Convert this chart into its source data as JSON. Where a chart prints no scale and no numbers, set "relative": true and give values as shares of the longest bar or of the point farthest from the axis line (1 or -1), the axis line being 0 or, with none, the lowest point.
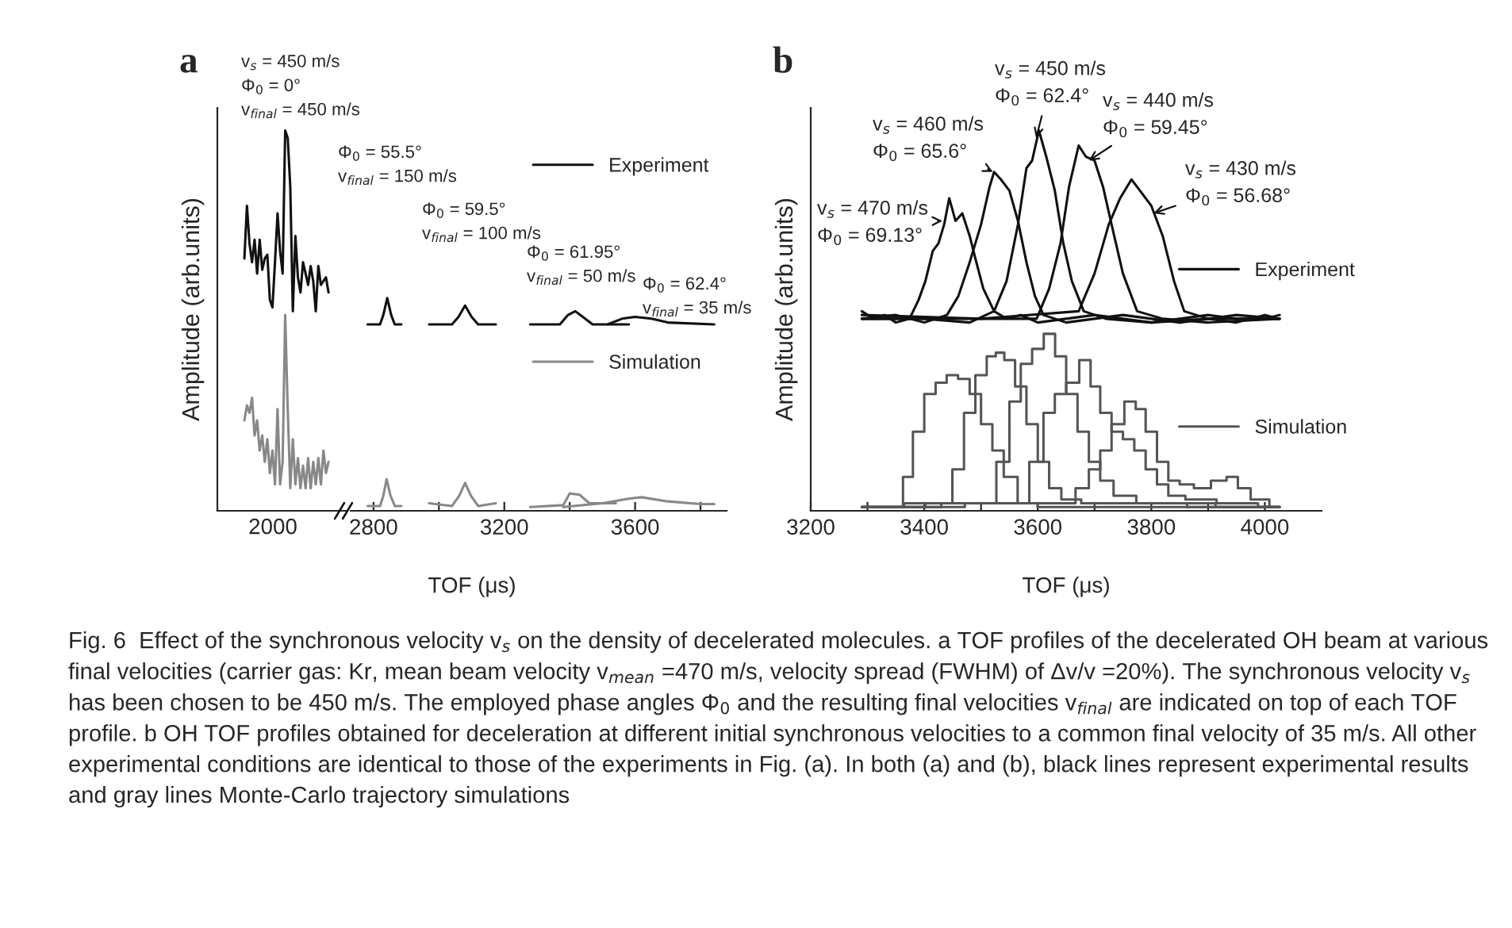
{
  "chart_data": [
    {
      "type": "line",
      "title": "a",
      "ylabel": "Amplitude (arb.units)",
      "relative": true,
      "tick_labels": false,
      "categories": [
        null,
        null,
        null,
        null,
        null,
        null,
        null,
        null,
        null,
        null,
        null,
        null,
        null,
        null,
        null,
        null,
        null,
        null,
        null,
        null,
        null,
        null,
        null,
        null,
        null,
        null,
        null,
        null,
        null,
        null,
        null,
        null,
        null,
        null
      ],
      "annotations": [
        "v$_{s}$ = 450 m/s\nΦ$_{0}$ = 0°\nv$_{final}$ = 450 m/s",
        "2000"
      ],
      "series": [
        {
          "color": "#111111",
          "values": [
            0.66,
            0.8,
            0.7,
            0.65,
            0.71,
            0.62,
            0.71,
            0.63,
            0.66,
            0.67,
            0.55,
            0.53,
            0.65,
            0.78,
            0.68,
            0.62,
            1.0,
            0.98,
            0.85,
            0.52,
            0.72,
            0.61,
            0.57,
            0.65,
            0.62,
            0.59,
            0.64,
            0.6,
            0.52,
            0.64,
            0.59,
            0.6,
            0.61,
            0.57
          ]
        },
        {
          "color": "#888888",
          "values": [
            0.23,
            0.27,
            0.25,
            0.29,
            0.19,
            0.23,
            0.15,
            0.19,
            0.12,
            0.18,
            0.09,
            0.15,
            0.06,
            0.26,
            0.06,
            0.12,
            0.51,
            0.26,
            0.05,
            0.18,
            0.06,
            0.13,
            0.05,
            0.11,
            0.05,
            0.13,
            0.05,
            0.12,
            0.06,
            0.13,
            0.06,
            0.15,
            0.09,
            0.12
          ]
        }
      ]
    },
    {
      "type": "line",
      "xlabel": "TOF (μs)",
      "relative": true,
      "tick_labels": "x",
      "legend": "right",
      "xlim": [
        2730,
        3880
      ],
      "xticks": [
        2800,
        {
          "value": 3000,
          "label": null
        },
        3200,
        {
          "value": 3400,
          "label": null
        },
        3600,
        {
          "value": 3800,
          "label": null
        }
      ],
      "annotations": [
        "Φ$_{0}$ = 55.5°\nv$_{final}$ = 150 m/s",
        "Φ$_{0}$ = 59.5°\nv$_{final}$ = 100 m/s",
        "Φ$_{0}$ = 61.95°\nv$_{final}$ = 50 m/s",
        "Φ$_{0}$ = 62.4°\nv$_{final}$ = 35 m/s"
      ],
      "series": [
        {
          "name": "Experiment",
          "color": "#111111",
          "x": [
            2782,
            2820,
            2830,
            2842,
            2854,
            2865,
            2885
          ],
          "values": [
            0.874,
            0.874,
            0.919,
            1.0,
            0.919,
            0.874,
            0.874
          ]
        },
        {
          "color": "#111111",
          "x": [
            2970,
            3040,
            3060,
            3080,
            3100,
            3120,
            3174
          ],
          "values": [
            0.874,
            0.874,
            0.91,
            0.964,
            0.91,
            0.874,
            0.874
          ]
        },
        {
          "color": "#111111",
          "x": [
            3279,
            3370,
            3395,
            3417,
            3440,
            3470,
            3581
          ],
          "values": [
            0.874,
            0.874,
            0.919,
            0.937,
            0.91,
            0.874,
            0.874
          ]
        },
        {
          "color": "#111111",
          "x": [
            3516,
            3560,
            3600,
            3650,
            3700,
            3842
          ],
          "values": [
            0.874,
            0.901,
            0.91,
            0.901,
            0.883,
            0.874
          ]
        },
        {
          "name": "Simulation",
          "color": "#888888",
          "x": [
            2782,
            2820,
            2830,
            2840,
            2852,
            2865,
            2885
          ],
          "values": [
            0.005,
            0.005,
            0.054,
            0.133,
            0.054,
            0.005,
            0.005
          ]
        },
        {
          "color": "#888888",
          "x": [
            2970,
            3040,
            3062,
            3080,
            3098,
            3120,
            3174
          ],
          "values": [
            0.018,
            0.005,
            0.054,
            0.115,
            0.054,
            0.005,
            0.018
          ]
        },
        {
          "color": "#888888",
          "x": [
            3279,
            3380,
            3400,
            3430,
            3460,
            3541
          ],
          "values": [
            0.0,
            0.009,
            0.065,
            0.059,
            0.018,
            0.018
          ]
        },
        {
          "color": "#888888",
          "x": [
            3380,
            3500,
            3580,
            3620,
            3700,
            3800,
            3842
          ],
          "values": [
            0.0,
            0.018,
            0.04,
            0.047,
            0.027,
            0.014,
            0.014
          ]
        }
      ]
    },
    {
      "type": "line",
      "title": "b",
      "ylabel": "Amplitude (arb.units)",
      "xlabel": "TOF (μs)",
      "relative": true,
      "tick_labels": "x",
      "legend": "right",
      "xlim": [
        3200,
        4100
      ],
      "xticks": [
        3200,
        {
          "value": 3300,
          "label": null
        },
        3400,
        {
          "value": 3500,
          "label": null
        },
        3600,
        {
          "value": 3700,
          "label": null
        },
        3800,
        {
          "value": 3900,
          "label": null
        },
        4000
      ],
      "annotations": [
        {
          "text": "v$_{s}$ = 470 m/s\nΦ$_{0}$ = 69.13°",
          "x": 3432,
          "y": 0.76
        },
        {
          "text": "v$_{s}$ = 460 m/s\nΦ$_{0}$ = 65.6°",
          "x": 3521,
          "y": 0.89
        },
        {
          "text": "v$_{s}$ = 450 m/s\nΦ$_{0}$ = 62.4°",
          "x": 3597,
          "y": 0.98
        },
        {
          "text": "v$_{s}$ = 440 m/s\nΦ$_{0}$ = 59.45°",
          "x": 3690,
          "y": 0.92
        },
        {
          "text": "v$_{s}$ = 430 m/s\nΦ$_{0}$ = 56.68°",
          "x": 3804,
          "y": 0.78
        },
        "Fig. 6  Effect of the synchronous velocity v$_{s}$ on the density of decelerated molecules. a TOF profiles of the decelerated OH beam at various final velocities (carrier gas: Kr, mean beam velocity v$_{mean}$ =470 m/s, velocity spread (FWHM) of Δv/v =20%). The synchronous velocity v$_{s}$ has been chosen to be 450 m/s. The employed phase angles Φ$_{0}$ and the resulting final velocities v$_{final}$ are indicated on top of each TOF profile. b OH TOF profiles obtained for deceleration at different initial synchronous velocities to a common final velocity of 35 m/s. All other experimental conditions are identical to those of the experiments in Fig. (a). In both (a) and (b), black lines represent experimental results and gray lines Monte-Carlo trajectory simulations"
      ],
      "series": [
        {
          "name": "Experiment",
          "color": "#111111",
          "x": [
            3290,
            3310,
            3330,
            3350,
            3374,
            3390,
            3402,
            3415,
            3425,
            3435,
            3444,
            3455,
            3467,
            3480,
            3490,
            3504,
            3523,
            3545,
            3570,
            3600,
            3650,
            3700,
            3750,
            3800,
            3850,
            3900,
            3950,
            4000,
            4026
          ],
          "values": [
            0.52,
            0.5,
            0.51,
            0.49,
            0.5,
            0.55,
            0.6,
            0.68,
            0.7,
            0.75,
            0.82,
            0.76,
            0.78,
            0.72,
            0.66,
            0.58,
            0.52,
            0.5,
            0.51,
            0.49,
            0.5,
            0.51,
            0.5,
            0.49,
            0.5,
            0.51,
            0.5,
            0.5,
            0.51
          ]
        },
        {
          "color": "#111111",
          "x": [
            3290,
            3350,
            3400,
            3440,
            3460,
            3480,
            3500,
            3515,
            3523,
            3535,
            3550,
            3565,
            3580,
            3595,
            3610,
            3650,
            3700,
            3750,
            3800,
            3850,
            3900,
            3950,
            4026
          ],
          "values": [
            0.5,
            0.51,
            0.49,
            0.51,
            0.56,
            0.65,
            0.75,
            0.85,
            0.89,
            0.87,
            0.84,
            0.76,
            0.65,
            0.56,
            0.51,
            0.49,
            0.5,
            0.51,
            0.5,
            0.49,
            0.5,
            0.51,
            0.5
          ]
        },
        {
          "color": "#111111",
          "x": [
            3290,
            3400,
            3480,
            3523,
            3545,
            3565,
            3580,
            3590,
            3602,
            3615,
            3630,
            3645,
            3660,
            3681,
            3720,
            3800,
            3900,
            4026
          ],
          "values": [
            0.5,
            0.5,
            0.49,
            0.52,
            0.6,
            0.75,
            0.9,
            0.92,
            1.0,
            0.93,
            0.84,
            0.7,
            0.6,
            0.52,
            0.5,
            0.49,
            0.5,
            0.5
          ]
        },
        {
          "color": "#111111",
          "x": [
            3290,
            3450,
            3598,
            3620,
            3640,
            3655,
            3672,
            3685,
            3700,
            3715,
            3730,
            3750,
            3775,
            3820,
            3900,
            4026
          ],
          "values": [
            0.5,
            0.5,
            0.5,
            0.58,
            0.7,
            0.85,
            0.96,
            0.93,
            0.92,
            0.85,
            0.75,
            0.62,
            0.52,
            0.5,
            0.49,
            0.5
          ]
        },
        {
          "color": "#111111",
          "x": [
            3290,
            3500,
            3672,
            3700,
            3725,
            3745,
            3765,
            3780,
            3800,
            3820,
            3840,
            3858,
            3900,
            3950,
            4000,
            4026
          ],
          "values": [
            0.51,
            0.5,
            0.52,
            0.62,
            0.75,
            0.82,
            0.87,
            0.84,
            0.8,
            0.72,
            0.6,
            0.52,
            0.5,
            0.49,
            0.51,
            0.5
          ]
        },
        {
          "type": "step",
          "name": "Simulation",
          "color": "#555555",
          "x": [
            3290,
            3355,
            3370,
            3390,
            3410,
            3430,
            3449,
            3470,
            3490,
            3510,
            3530,
            3550,
            3579,
            3620,
            4026
          ],
          "values": [
            0.0,
            0.0,
            0.08,
            0.2,
            0.3,
            0.33,
            0.35,
            0.34,
            0.3,
            0.22,
            0.15,
            0.08,
            0.01,
            0.0,
            0.0
          ]
        },
        {
          "type": "step",
          "color": "#555555",
          "x": [
            3290,
            3439,
            3460,
            3480,
            3500,
            3520,
            3532,
            3550,
            3570,
            3590,
            3610,
            3630,
            3653,
            3700,
            4026
          ],
          "values": [
            0.0,
            0.01,
            0.1,
            0.25,
            0.35,
            0.4,
            0.41,
            0.39,
            0.32,
            0.22,
            0.12,
            0.05,
            0.02,
            0.01,
            0.0
          ]
        },
        {
          "type": "step",
          "color": "#555555",
          "x": [
            3290,
            3514,
            3540,
            3560,
            3580,
            3600,
            3621,
            3640,
            3660,
            3680,
            3700,
            3720,
            3747,
            3800,
            4026
          ],
          "values": [
            0.0,
            0.01,
            0.12,
            0.28,
            0.38,
            0.42,
            0.46,
            0.4,
            0.3,
            0.2,
            0.12,
            0.07,
            0.03,
            0.01,
            0.0
          ]
        },
        {
          "type": "step",
          "color": "#555555",
          "x": [
            3290,
            3570,
            3600,
            3620,
            3640,
            3660,
            3686,
            3700,
            3720,
            3740,
            3760,
            3780,
            3800,
            3820,
            3840,
            3880,
            3950,
            4026
          ],
          "values": [
            0.0,
            0.01,
            0.12,
            0.25,
            0.3,
            0.33,
            0.39,
            0.32,
            0.25,
            0.2,
            0.18,
            0.15,
            0.1,
            0.06,
            0.03,
            0.02,
            0.01,
            0.0
          ]
        },
        {
          "type": "step",
          "color": "#555555",
          "x": [
            3290,
            3653,
            3680,
            3700,
            3720,
            3740,
            3765,
            3780,
            3800,
            3820,
            3840,
            3860,
            3890,
            3920,
            3945,
            3960,
            3990,
            4026
          ],
          "values": [
            0.0,
            0.01,
            0.05,
            0.1,
            0.15,
            0.22,
            0.28,
            0.26,
            0.2,
            0.12,
            0.07,
            0.06,
            0.05,
            0.07,
            0.08,
            0.05,
            0.02,
            0.0
          ]
        }
      ]
    }
  ]
}
